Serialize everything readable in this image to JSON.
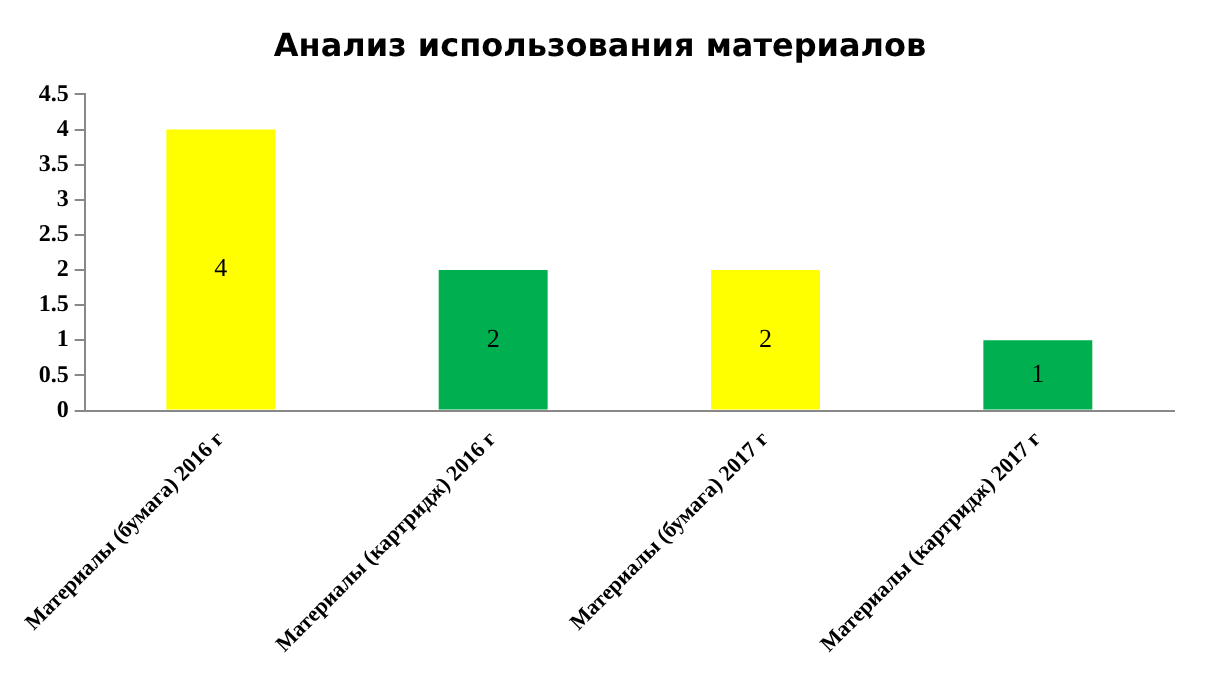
{
  "chart_data": {
    "type": "bar",
    "title": "Анализ использования материалов",
    "categories": [
      "Материалы (бумага) 2016 г",
      "Материалы (картридж) 2016 г",
      "Материалы (бумага) 2017 г",
      "Материалы (картридж) 2017 г"
    ],
    "values": [
      4,
      2,
      2,
      1
    ],
    "colors": [
      "#ffff00",
      "#00b050",
      "#ffff00",
      "#00b050"
    ],
    "ylim": [
      0,
      4.5
    ],
    "yticks": [
      0,
      0.5,
      1,
      1.5,
      2,
      2.5,
      3,
      3.5,
      4,
      4.5
    ],
    "data_labels": true,
    "grid": false,
    "legend": false
  }
}
